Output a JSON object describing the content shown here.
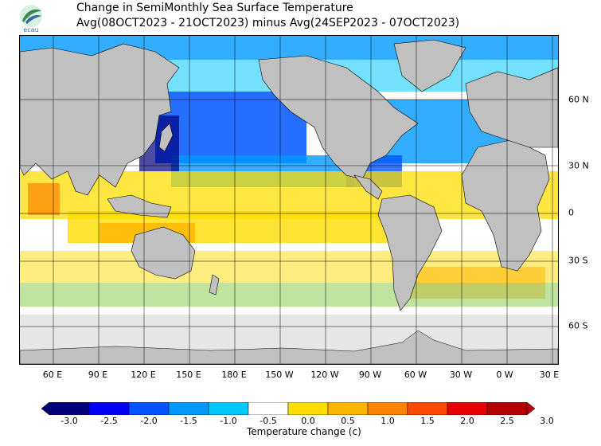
{
  "logo": {
    "text": "ecau"
  },
  "title": {
    "line1": "Change in SemiMonthly Sea Surface Temperature",
    "line2": "Avg(08OCT2023 - 21OCT2023) minus Avg(24SEP2023 - 07OCT2023)"
  },
  "lon_labels": [
    "60 E",
    "90 E",
    "120 E",
    "150 E",
    "180 E",
    "150 W",
    "120 W",
    "90 W",
    "60 W",
    "30 W",
    "0 W",
    "30 E"
  ],
  "lat_labels": [
    "60 N",
    "30 N",
    "0",
    "30 S",
    "60 S"
  ],
  "colorbar": {
    "ticks": [
      "-3.0",
      "-2.5",
      "-2.0",
      "-1.5",
      "-1.0",
      "-0.5",
      "0.0",
      "0.5",
      "1.0",
      "1.5",
      "2.0",
      "2.5",
      "3.0"
    ],
    "colors": [
      "#00007f",
      "#0000ff",
      "#0055ff",
      "#0099ff",
      "#00c8ff",
      "#ffffff",
      "#ffdd00",
      "#ffb400",
      "#ff8200",
      "#ff4b00",
      "#e60000",
      "#b40000"
    ],
    "title": "Temperature change  (c)"
  },
  "map_colors": {
    "land": "#c0c0c0",
    "ice": "#e6e6e6",
    "ocean_neutral": "#ffffff",
    "grid": "#000000"
  }
}
